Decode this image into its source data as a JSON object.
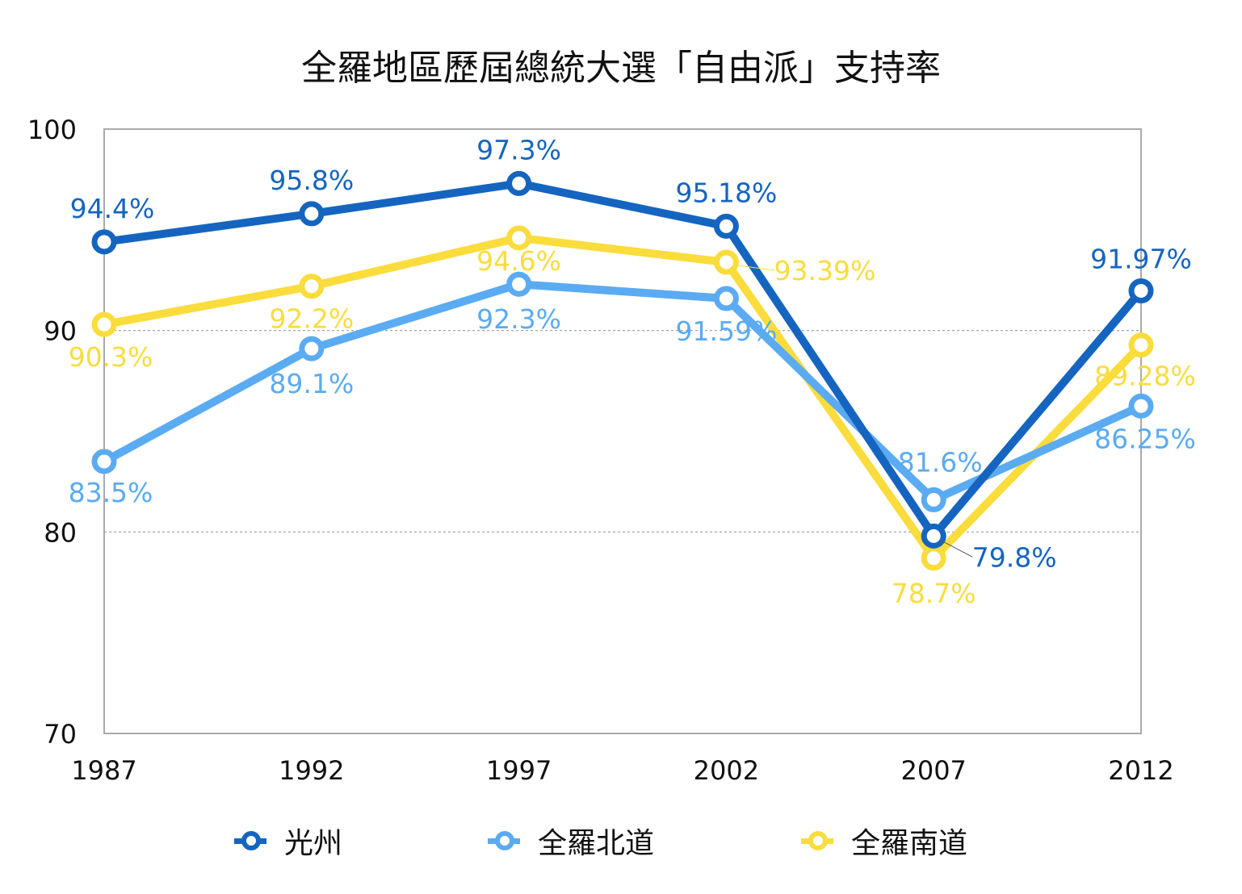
{
  "chart_data": {
    "type": "line",
    "title": "全羅地區歷屆總統大選「自由派」支持率",
    "categories": [
      "1987",
      "1992",
      "1997",
      "2002",
      "2007",
      "2012"
    ],
    "ylim": [
      70,
      100
    ],
    "yticks": [
      70,
      80,
      90,
      100
    ],
    "grid": "dotted horizontal at 80 and 90",
    "legend_position": "bottom",
    "series": [
      {
        "name": "光州",
        "color": "#1565C0",
        "values": [
          94.4,
          95.8,
          97.3,
          95.18,
          79.8,
          91.97
        ],
        "labels": [
          "94.4%",
          "95.8%",
          "97.3%",
          "95.18%",
          "79.8%",
          "91.97%"
        ]
      },
      {
        "name": "全羅北道",
        "color": "#5AABF2",
        "values": [
          83.5,
          89.1,
          92.3,
          91.59,
          81.6,
          86.25
        ],
        "labels": [
          "83.5%",
          "89.1%",
          "92.3%",
          "91.59%",
          "81.6%",
          "86.25%"
        ]
      },
      {
        "name": "全羅南道",
        "color": "#FADC3C",
        "values": [
          90.3,
          92.2,
          94.6,
          93.39,
          78.7,
          89.28
        ],
        "labels": [
          "90.3%",
          "92.2%",
          "94.6%",
          "93.39%",
          "78.7%",
          "89.28%"
        ]
      }
    ]
  }
}
